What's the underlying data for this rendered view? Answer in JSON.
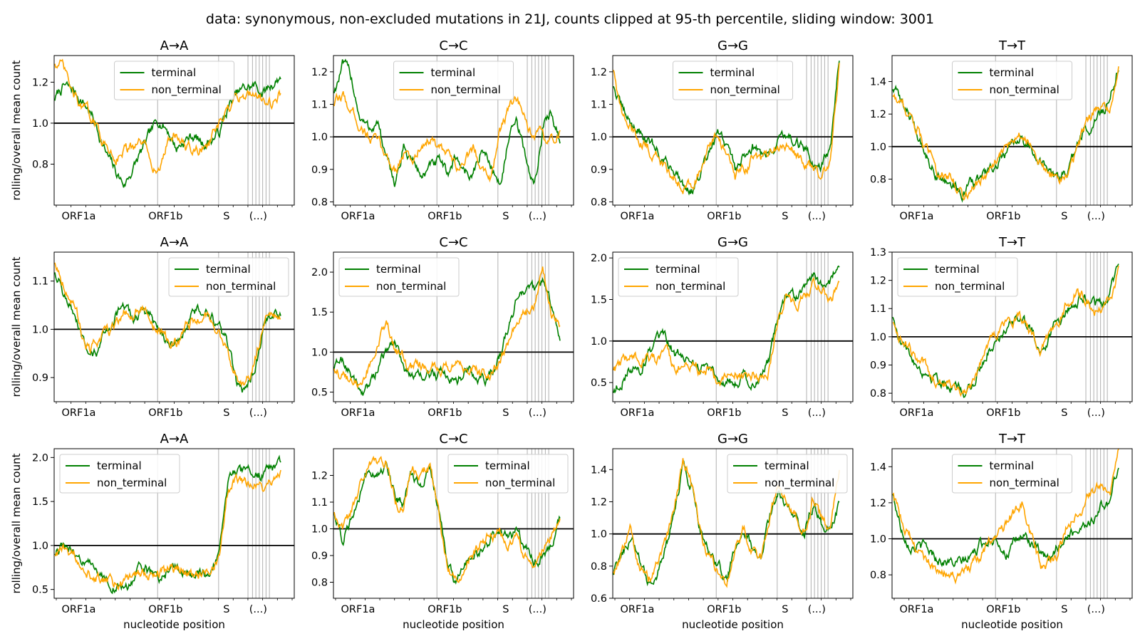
{
  "figure": {
    "suptitle": "data: synonymous, non-excluded mutations in 21J, counts clipped at 95-th percentile, sliding window: 3001",
    "ylabel": "rolling/overall mean count",
    "xlabel": "nucleotide position",
    "x_categories": [
      "ORF1a",
      "ORF1b",
      "S",
      "(...)"
    ]
  },
  "colors": {
    "terminal": "#008000",
    "non_terminal": "#ffa500",
    "reference": "#000000",
    "gene_lines": "#b0b0b0"
  },
  "chart_data": [
    {
      "type": "line",
      "title": "A→A",
      "ylim": [
        0.6,
        1.33
      ],
      "yticks": [
        "0.8",
        "1.0",
        "1.2"
      ],
      "legend": "top-center",
      "reference_y": 1.0,
      "series": [
        {
          "name": "terminal",
          "values": [
            1.12,
            1.18,
            1.16,
            1.12,
            1.06,
            0.96,
            0.84,
            0.76,
            0.7,
            0.78,
            0.86,
            0.94,
            1.02,
            0.97,
            0.88,
            0.92,
            0.94,
            0.9,
            0.92,
            0.96,
            1.08,
            1.14,
            1.17,
            1.18,
            1.15,
            1.19,
            1.23
          ]
        },
        {
          "name": "non_terminal",
          "values": [
            1.3,
            1.26,
            1.14,
            1.08,
            1.04,
            0.96,
            0.88,
            0.84,
            0.88,
            0.86,
            0.9,
            0.83,
            0.76,
            0.92,
            0.96,
            0.88,
            0.86,
            0.88,
            0.92,
            0.99,
            1.05,
            1.12,
            1.14,
            1.16,
            1.12,
            1.1,
            1.14
          ]
        }
      ]
    },
    {
      "type": "line",
      "title": "C→C",
      "ylim": [
        0.79,
        1.25
      ],
      "yticks": [
        "0.8",
        "0.9",
        "1.0",
        "1.1",
        "1.2"
      ],
      "legend": "top-center",
      "reference_y": 1.0,
      "series": [
        {
          "name": "terminal",
          "values": [
            1.14,
            1.22,
            1.18,
            1.06,
            1.02,
            1.05,
            0.92,
            0.86,
            0.96,
            0.93,
            0.88,
            0.9,
            0.92,
            0.88,
            0.94,
            0.9,
            0.88,
            0.96,
            0.92,
            0.85,
            0.98,
            1.04,
            0.94,
            0.84,
            1.02,
            1.08,
            1.0
          ]
        },
        {
          "name": "non_terminal",
          "values": [
            1.1,
            1.12,
            1.08,
            1.04,
            1.0,
            0.98,
            0.94,
            0.9,
            0.95,
            0.92,
            0.98,
            1.0,
            0.96,
            0.94,
            0.9,
            0.92,
            0.96,
            0.92,
            0.88,
            1.0,
            1.08,
            1.12,
            1.04,
            0.98,
            1.0,
            0.98,
            1.02
          ]
        }
      ]
    },
    {
      "type": "line",
      "title": "G→G",
      "ylim": [
        0.79,
        1.25
      ],
      "yticks": [
        "0.8",
        "0.9",
        "1.0",
        "1.1",
        "1.2"
      ],
      "legend": "top-center",
      "reference_y": 1.0,
      "series": [
        {
          "name": "terminal",
          "values": [
            1.16,
            1.08,
            1.04,
            1.02,
            0.98,
            0.96,
            0.92,
            0.9,
            0.86,
            0.84,
            0.88,
            0.94,
            1.0,
            0.98,
            0.9,
            0.94,
            0.98,
            0.94,
            0.96,
            1.0,
            1.02,
            0.98,
            0.96,
            0.92,
            0.92,
            0.96,
            1.24
          ]
        },
        {
          "name": "non_terminal",
          "values": [
            1.21,
            1.06,
            1.02,
            1.0,
            0.96,
            0.94,
            0.9,
            0.88,
            0.86,
            0.86,
            0.9,
            0.96,
            1.0,
            0.96,
            0.86,
            0.9,
            0.94,
            0.92,
            0.94,
            0.96,
            0.98,
            0.94,
            0.92,
            0.9,
            0.88,
            0.92,
            1.22
          ]
        }
      ]
    },
    {
      "type": "line",
      "title": "T→T",
      "ylim": [
        0.64,
        1.56
      ],
      "yticks": [
        "0.8",
        "1.0",
        "1.2",
        "1.4"
      ],
      "legend": "top-center",
      "reference_y": 1.0,
      "series": [
        {
          "name": "terminal",
          "values": [
            1.36,
            1.28,
            1.18,
            1.06,
            0.94,
            0.84,
            0.8,
            0.76,
            0.72,
            0.76,
            0.8,
            0.84,
            0.88,
            0.94,
            1.0,
            1.04,
            1.0,
            0.92,
            0.82,
            0.8,
            0.84,
            0.96,
            1.1,
            1.14,
            1.2,
            1.28,
            1.52
          ]
        },
        {
          "name": "non_terminal",
          "values": [
            1.32,
            1.26,
            1.2,
            1.1,
            0.96,
            0.86,
            0.82,
            0.78,
            0.7,
            0.74,
            0.78,
            0.84,
            0.9,
            0.98,
            1.06,
            1.1,
            1.02,
            0.9,
            0.82,
            0.78,
            0.82,
            0.94,
            1.12,
            1.2,
            1.26,
            1.18,
            1.5
          ]
        }
      ]
    },
    {
      "type": "line",
      "title": "A→A",
      "ylim": [
        0.85,
        1.16
      ],
      "yticks": [
        "0.9",
        "1.0",
        "1.1"
      ],
      "legend": "top-right",
      "reference_y": 1.0,
      "series": [
        {
          "name": "terminal",
          "values": [
            1.12,
            1.08,
            1.04,
            0.98,
            0.93,
            0.96,
            1.0,
            1.03,
            1.04,
            1.02,
            1.04,
            1.02,
            1.0,
            0.98,
            0.96,
            1.0,
            1.04,
            1.04,
            1.02,
            1.0,
            0.96,
            0.88,
            0.87,
            0.92,
            1.0,
            1.03,
            1.03
          ]
        },
        {
          "name": "non_terminal",
          "values": [
            1.14,
            1.1,
            1.06,
            1.0,
            0.96,
            0.97,
            0.99,
            1.01,
            1.04,
            1.03,
            1.05,
            1.01,
            0.99,
            0.97,
            0.97,
            1.0,
            1.02,
            1.03,
            1.01,
            0.99,
            0.95,
            0.9,
            0.88,
            0.93,
            1.01,
            1.04,
            1.02
          ]
        }
      ]
    },
    {
      "type": "line",
      "title": "C→C",
      "ylim": [
        0.38,
        2.25
      ],
      "yticks": [
        "0.5",
        "1.0",
        "1.5",
        "2.0"
      ],
      "legend": "top-left",
      "reference_y": 1.0,
      "series": [
        {
          "name": "terminal",
          "values": [
            0.8,
            0.9,
            0.7,
            0.5,
            0.55,
            0.8,
            1.0,
            1.1,
            0.85,
            0.7,
            0.65,
            0.72,
            0.7,
            0.75,
            0.65,
            0.72,
            0.75,
            0.62,
            0.7,
            0.95,
            1.3,
            1.65,
            1.82,
            1.75,
            1.85,
            1.6,
            1.2
          ]
        },
        {
          "name": "non_terminal",
          "values": [
            0.8,
            0.7,
            0.6,
            0.55,
            0.85,
            1.1,
            1.3,
            1.0,
            0.9,
            0.8,
            0.85,
            0.8,
            0.78,
            0.82,
            0.8,
            0.76,
            0.78,
            0.7,
            0.72,
            0.9,
            1.1,
            1.35,
            1.5,
            1.6,
            2.1,
            1.5,
            1.35
          ]
        }
      ]
    },
    {
      "type": "line",
      "title": "G→G",
      "ylim": [
        0.27,
        2.07
      ],
      "yticks": [
        "0.5",
        "1.0",
        "1.5",
        "2.0"
      ],
      "legend": "top-left",
      "reference_y": 1.0,
      "series": [
        {
          "name": "terminal",
          "values": [
            0.38,
            0.55,
            0.7,
            0.65,
            0.85,
            0.95,
            1.0,
            0.85,
            0.8,
            0.75,
            0.7,
            0.75,
            0.55,
            0.5,
            0.55,
            0.6,
            0.5,
            0.6,
            0.8,
            1.3,
            1.6,
            1.5,
            1.65,
            1.75,
            1.6,
            1.7,
            1.9
          ]
        },
        {
          "name": "non_terminal",
          "values": [
            0.65,
            0.72,
            0.8,
            0.78,
            0.82,
            0.75,
            0.8,
            0.7,
            0.72,
            0.72,
            0.65,
            0.68,
            0.5,
            0.55,
            0.62,
            0.55,
            0.6,
            0.55,
            0.7,
            1.25,
            1.55,
            1.45,
            1.55,
            1.7,
            1.65,
            1.55,
            1.6
          ]
        }
      ]
    },
    {
      "type": "line",
      "title": "T→T",
      "ylim": [
        0.77,
        1.3
      ],
      "yticks": [
        "0.8",
        "0.9",
        "1.0",
        "1.1",
        "1.2",
        "1.3"
      ],
      "legend": "top-left",
      "reference_y": 1.0,
      "series": [
        {
          "name": "terminal",
          "values": [
            1.07,
            0.98,
            0.93,
            0.9,
            0.87,
            0.86,
            0.84,
            0.82,
            0.8,
            0.82,
            0.88,
            0.96,
            1.0,
            1.04,
            1.06,
            1.05,
            1.02,
            0.97,
            1.0,
            1.06,
            1.1,
            1.14,
            1.15,
            1.12,
            1.1,
            1.14,
            1.27
          ]
        },
        {
          "name": "non_terminal",
          "values": [
            1.05,
            0.99,
            0.95,
            0.91,
            0.88,
            0.86,
            0.85,
            0.83,
            0.81,
            0.83,
            0.9,
            0.98,
            1.02,
            1.05,
            1.07,
            1.06,
            1.02,
            0.96,
            1.0,
            1.06,
            1.12,
            1.15,
            1.14,
            1.1,
            1.1,
            1.13,
            1.24
          ]
        }
      ]
    },
    {
      "type": "line",
      "title": "A→A",
      "ylim": [
        0.4,
        2.1
      ],
      "yticks": [
        "0.5",
        "1.0",
        "1.5",
        "2.0"
      ],
      "legend": "top-left",
      "reference_y": 1.0,
      "series": [
        {
          "name": "terminal",
          "values": [
            0.9,
            0.98,
            0.95,
            0.88,
            0.75,
            0.68,
            0.62,
            0.55,
            0.52,
            0.6,
            0.7,
            0.68,
            0.66,
            0.72,
            0.75,
            0.72,
            0.7,
            0.66,
            0.68,
            1.0,
            1.75,
            1.8,
            1.78,
            1.76,
            1.82,
            1.85,
            1.95
          ]
        },
        {
          "name": "non_terminal",
          "values": [
            0.88,
            0.93,
            0.9,
            0.85,
            0.72,
            0.66,
            0.6,
            0.56,
            0.54,
            0.62,
            0.68,
            0.66,
            0.64,
            0.7,
            0.74,
            0.7,
            0.68,
            0.64,
            0.66,
            0.95,
            1.7,
            1.75,
            1.72,
            1.7,
            1.65,
            1.75,
            1.9
          ]
        }
      ]
    },
    {
      "type": "line",
      "title": "C→C",
      "ylim": [
        0.74,
        1.3
      ],
      "yticks": [
        "0.8",
        "0.9",
        "1.0",
        "1.1",
        "1.2"
      ],
      "legend": "top-right",
      "reference_y": 1.0,
      "series": [
        {
          "name": "terminal",
          "values": [
            1.06,
            0.96,
            1.05,
            1.15,
            1.22,
            1.2,
            1.24,
            1.12,
            1.1,
            1.2,
            1.18,
            1.24,
            1.08,
            0.88,
            0.8,
            0.86,
            0.9,
            0.92,
            0.96,
            0.98,
            0.96,
            0.98,
            0.92,
            0.88,
            0.9,
            0.95,
            1.03
          ]
        },
        {
          "name": "non_terminal",
          "values": [
            1.06,
            0.98,
            1.06,
            1.16,
            1.24,
            1.22,
            1.25,
            1.1,
            1.08,
            1.22,
            1.2,
            1.24,
            1.06,
            0.86,
            0.8,
            0.88,
            0.92,
            0.95,
            0.98,
            1.0,
            0.96,
            0.96,
            0.9,
            0.88,
            0.92,
            0.98,
            1.04
          ]
        }
      ]
    },
    {
      "type": "line",
      "title": "G→G",
      "ylim": [
        0.6,
        1.53
      ],
      "yticks": [
        "0.6",
        "0.8",
        "1.0",
        "1.2",
        "1.4"
      ],
      "legend": "top-right",
      "reference_y": 1.0,
      "series": [
        {
          "name": "terminal",
          "values": [
            0.74,
            0.88,
            1.0,
            0.85,
            0.7,
            0.78,
            0.9,
            1.1,
            1.4,
            1.3,
            1.05,
            0.88,
            0.8,
            0.7,
            0.9,
            1.0,
            0.92,
            0.85,
            1.1,
            1.24,
            1.2,
            1.1,
            1.0,
            1.2,
            1.05,
            1.0,
            1.18
          ]
        },
        {
          "name": "non_terminal",
          "values": [
            0.76,
            0.9,
            1.02,
            0.82,
            0.7,
            0.8,
            0.92,
            1.12,
            1.45,
            1.32,
            1.02,
            0.86,
            0.78,
            0.68,
            0.92,
            1.02,
            0.9,
            0.84,
            1.12,
            1.3,
            1.24,
            1.12,
            1.02,
            1.22,
            1.08,
            0.98,
            1.4
          ]
        }
      ]
    },
    {
      "type": "line",
      "title": "T→T",
      "ylim": [
        0.67,
        1.5
      ],
      "yticks": [
        "0.8",
        "1.0",
        "1.2",
        "1.4"
      ],
      "legend": "top-center",
      "reference_y": 1.0,
      "series": [
        {
          "name": "terminal",
          "values": [
            1.24,
            1.06,
            0.98,
            0.96,
            0.94,
            0.9,
            0.88,
            0.86,
            0.86,
            0.9,
            0.96,
            1.0,
            1.02,
            0.92,
            0.96,
            1.02,
            0.98,
            0.9,
            0.86,
            0.96,
            1.02,
            1.04,
            1.1,
            1.1,
            1.18,
            1.2,
            1.42
          ]
        },
        {
          "name": "non_terminal",
          "values": [
            1.24,
            1.1,
            1.0,
            0.92,
            0.86,
            0.84,
            0.82,
            0.78,
            0.8,
            0.86,
            0.9,
            0.96,
            1.02,
            1.08,
            1.14,
            1.2,
            1.0,
            0.84,
            0.86,
            0.9,
            1.06,
            1.16,
            1.2,
            1.26,
            1.3,
            1.24,
            1.46
          ]
        }
      ]
    }
  ]
}
